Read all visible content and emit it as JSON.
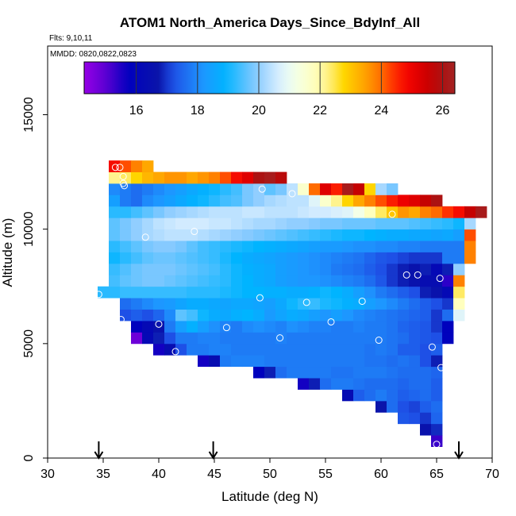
{
  "chart_data": {
    "type": "heatmap",
    "title": "ATOM1 North_America Days_Since_BdyInf_All",
    "flights_label": "Flts: 9,10,11",
    "mmdd_label": "MMDD: 0820,0822,0823",
    "xlabel": "Latitude (deg N)",
    "ylabel": "Altitude (m)",
    "xlim": [
      30,
      70
    ],
    "ylim": [
      0,
      18000
    ],
    "xticks": [
      30,
      35,
      40,
      45,
      50,
      55,
      60,
      65,
      70
    ],
    "xtick_labels": [
      "30",
      "35",
      "40",
      "45",
      "50",
      "55",
      "60",
      "65",
      "70"
    ],
    "yticks": [
      0,
      5000,
      10000,
      15000
    ],
    "ytick_labels": [
      "0",
      "5000",
      "10000",
      "15000"
    ],
    "colorbar": {
      "range": [
        14.3,
        26.4
      ],
      "ticks": [
        16,
        18,
        20,
        22,
        24,
        26
      ],
      "tick_labels": [
        "16",
        "18",
        "20",
        "22",
        "24",
        "26"
      ],
      "placement": "top-inside"
    },
    "cell_size_deg_lat": 1,
    "cell_size_alt_m": 500,
    "rows": [
      {
        "alt_min": 500,
        "lat_start": 64.5,
        "values": [
          15.3
        ]
      },
      {
        "alt_min": 1000,
        "lat_start": 63.5,
        "values": [
          16.6,
          16.9
        ]
      },
      {
        "alt_min": 1500,
        "lat_start": 61.5,
        "values": [
          17.3,
          17.2,
          17.0,
          17.5
        ]
      },
      {
        "alt_min": 2000,
        "lat_start": 59.5,
        "values": [
          16.7,
          17.6,
          17.2,
          17.1,
          17.4,
          17.6
        ]
      },
      {
        "alt_min": 2500,
        "lat_start": 56.5,
        "values": [
          16.3,
          17.4,
          17.6,
          17.8,
          17.6,
          17.4,
          17.5,
          17.6,
          17.4
        ]
      },
      {
        "alt_min": 3000,
        "lat_start": 52.5,
        "values": [
          15.6,
          16.8,
          17.6,
          17.8,
          17.8,
          17.7,
          17.6,
          17.6,
          17.6,
          17.5,
          17.6,
          17.6,
          17.4
        ]
      },
      {
        "alt_min": 3500,
        "lat_start": 48.5,
        "values": [
          15.8,
          16.8,
          17.6,
          17.8,
          17.8,
          17.8,
          17.8,
          17.7,
          17.7,
          17.8,
          17.8,
          17.8,
          17.7,
          17.6,
          17.6,
          17.6,
          17.5
        ]
      },
      {
        "alt_min": 4000,
        "lat_start": 43.5,
        "values": [
          15.6,
          16.4,
          17.8,
          17.9,
          17.9,
          17.9,
          17.8,
          17.8,
          17.8,
          17.8,
          17.8,
          17.8,
          17.8,
          17.8,
          17.8,
          17.7,
          17.7,
          17.6,
          17.7,
          17.6,
          17.2,
          16.8
        ]
      },
      {
        "alt_min": 4500,
        "lat_start": 39.5,
        "values": [
          15.6,
          16.4,
          17.2,
          17.8,
          17.8,
          17.9,
          17.9,
          17.8,
          17.8,
          17.8,
          17.8,
          17.8,
          17.8,
          17.8,
          17.8,
          17.8,
          17.8,
          17.8,
          17.8,
          17.7,
          17.8,
          17.7,
          17.4,
          17.4,
          17.2,
          17.4
        ]
      },
      {
        "alt_min": 5000,
        "lat_start": 37.5,
        "values": [
          14.8,
          16.2,
          16.8,
          17.2,
          17.8,
          17.8,
          17.9,
          17.9,
          17.8,
          17.8,
          17.8,
          17.8,
          17.8,
          17.9,
          17.8,
          17.8,
          17.8,
          17.8,
          17.8,
          17.8,
          17.8,
          17.8,
          17.8,
          17.7,
          17.6,
          17.4,
          17.3,
          17.2,
          15.8
        ]
      },
      {
        "alt_min": 5500,
        "lat_start": 37.5,
        "values": [
          15.8,
          16.2,
          16.6,
          17.8,
          18.4,
          18.8,
          18.4,
          18.1,
          17.9,
          17.8,
          18.0,
          18.1,
          18.0,
          17.9,
          18.1,
          18.0,
          17.9,
          17.9,
          17.8,
          17.8,
          17.9,
          17.8,
          17.8,
          17.7,
          17.5,
          17.4,
          17.3,
          17.0,
          15.8
        ]
      },
      {
        "alt_min": 6000,
        "lat_start": 36.5,
        "values": [
          17.2,
          17.4,
          17.2,
          17.5,
          18.0,
          19.6,
          19.4,
          19.0,
          18.7,
          18.6,
          18.8,
          18.9,
          18.7,
          18.3,
          18.5,
          18.7,
          18.6,
          18.4,
          18.2,
          18.4,
          18.2,
          18.0,
          17.9,
          17.8,
          17.7,
          17.6,
          17.5,
          17.4,
          17.0,
          17.6,
          20.8
        ]
      },
      {
        "alt_min": 6500,
        "lat_start": 36.5,
        "values": [
          17.6,
          17.8,
          18.0,
          18.2,
          18.3,
          18.5,
          18.7,
          18.7,
          18.6,
          18.5,
          18.6,
          18.6,
          18.5,
          18.4,
          18.6,
          19.0,
          19.2,
          19.3,
          19.1,
          19.0,
          18.8,
          18.7,
          18.4,
          18.2,
          18.0,
          17.8,
          17.6,
          17.4,
          17.2,
          17.0,
          21.8
        ]
      },
      {
        "alt_min": 7000,
        "lat_start": 34.5,
        "values": [
          19.2,
          19.2,
          19.3,
          19.3,
          19.3,
          19.3,
          19.3,
          19.3,
          19.2,
          19.2,
          19.2,
          19.1,
          19.0,
          18.9,
          18.9,
          18.8,
          18.8,
          18.7,
          18.7,
          18.8,
          19.0,
          18.9,
          18.7,
          18.4,
          18.1,
          17.8,
          17.6,
          17.4,
          17.2,
          16.8,
          16.6,
          16.2,
          22.4
        ]
      },
      {
        "alt_min": 7500,
        "lat_start": 35.5,
        "values": [
          19.4,
          19.6,
          19.7,
          19.8,
          19.8,
          19.7,
          19.6,
          19.5,
          19.4,
          19.3,
          19.2,
          19.0,
          18.9,
          18.7,
          18.6,
          18.4,
          18.3,
          18.2,
          18.2,
          18.1,
          18.0,
          17.9,
          17.8,
          17.6,
          17.3,
          17.0,
          16.8,
          16.6,
          16.4,
          16.4,
          15.4,
          23.8
        ]
      },
      {
        "alt_min": 8000,
        "lat_start": 35.5,
        "values": [
          19.3,
          19.5,
          19.7,
          19.8,
          19.8,
          19.8,
          19.7,
          19.6,
          19.5,
          19.4,
          19.2,
          19.0,
          18.8,
          18.7,
          18.6,
          18.4,
          18.3,
          18.2,
          18.1,
          18.0,
          17.8,
          17.7,
          17.6,
          17.4,
          17.2,
          17.0,
          16.8,
          16.6,
          16.8,
          16.2,
          16.8,
          20.0
        ]
      },
      {
        "alt_min": 8500,
        "lat_start": 35.5,
        "values": [
          19.0,
          19.2,
          19.4,
          19.6,
          19.7,
          19.7,
          19.6,
          19.5,
          19.4,
          19.3,
          19.1,
          18.9,
          18.7,
          18.6,
          18.5,
          18.4,
          18.3,
          18.2,
          18.1,
          18.0,
          17.9,
          17.8,
          17.7,
          17.5,
          17.3,
          17.2,
          17.1,
          17.0,
          17.0,
          17.0,
          17.8,
          17.8,
          23.8
        ]
      },
      {
        "alt_min": 9000,
        "lat_start": 35.5,
        "values": [
          19.2,
          19.4,
          19.6,
          19.8,
          19.9,
          19.9,
          19.8,
          19.6,
          19.4,
          19.3,
          19.2,
          19.1,
          19.0,
          18.9,
          18.8,
          18.7,
          18.6,
          18.5,
          18.4,
          18.3,
          18.3,
          18.2,
          18.1,
          18.1,
          18.0,
          18.0,
          17.9,
          17.9,
          17.8,
          17.8,
          17.8,
          17.8,
          23.8
        ]
      },
      {
        "alt_min": 9500,
        "lat_start": 35.5,
        "values": [
          19.6,
          19.8,
          20.0,
          20.2,
          20.3,
          20.4,
          20.4,
          20.4,
          20.3,
          20.2,
          20.1,
          20.0,
          19.9,
          19.8,
          19.7,
          19.6,
          19.5,
          19.4,
          19.3,
          19.2,
          19.1,
          19.0,
          19.0,
          18.9,
          18.8,
          18.7,
          18.7,
          18.6,
          18.6,
          18.5,
          18.6,
          18.4,
          24.2
        ]
      },
      {
        "alt_min": 10000,
        "lat_start": 35.5,
        "values": [
          19.6,
          19.8,
          20.0,
          20.2,
          20.4,
          20.5,
          20.6,
          20.6,
          20.6,
          20.5,
          20.5,
          20.4,
          20.3,
          20.2,
          20.2,
          20.1,
          20.0,
          20.0,
          19.9,
          19.8,
          19.8,
          19.7,
          19.7,
          19.7,
          19.6,
          19.6,
          19.6,
          19.5,
          19.4,
          19.3,
          19.2,
          19.0,
          20.2
        ]
      },
      {
        "alt_min": 10500,
        "lat_start": 35.5,
        "values": [
          19.2,
          19.2,
          19.4,
          19.6,
          19.8,
          20.0,
          20.1,
          20.2,
          20.3,
          20.4,
          20.4,
          20.4,
          20.5,
          20.5,
          20.4,
          20.4,
          20.4,
          20.5,
          20.6,
          20.6,
          20.7,
          20.8,
          21.2,
          21.8,
          22.4,
          23.0,
          23.6,
          23.4,
          23.8,
          24.0,
          24.4,
          24.8,
          25.6,
          26.2
        ]
      },
      {
        "alt_min": 11000,
        "lat_start": 35.5,
        "values": [
          18.4,
          17.8,
          17.6,
          18.0,
          18.2,
          18.4,
          18.6,
          18.8,
          19.0,
          19.2,
          19.4,
          19.5,
          19.8,
          20.0,
          20.2,
          20.3,
          20.4,
          20.4,
          20.8,
          21.6,
          22.2,
          22.8,
          23.4,
          23.8,
          24.2,
          24.6,
          25.0,
          25.2,
          25.6,
          26.0
        ]
      },
      {
        "alt_min": 11500,
        "lat_start": 35.5,
        "values": [
          18.0,
          17.8,
          17.6,
          17.8,
          18.0,
          18.2,
          18.4,
          18.6,
          18.8,
          19.0,
          19.2,
          19.4,
          19.8,
          20.0,
          19.6,
          19.8,
          20.4,
          21.6,
          24.0,
          25.2,
          24.6,
          26.2,
          25.6,
          22.8,
          20.2,
          19.8
        ]
      },
      {
        "alt_min": 12000,
        "lat_start": 35.5,
        "values": [
          22.2,
          22.4,
          22.8,
          23.2,
          23.4,
          23.6,
          23.6,
          23.4,
          23.6,
          23.8,
          24.2,
          24.8,
          25.2,
          26.0,
          26.2,
          25.8
        ]
      },
      {
        "alt_min": 12500,
        "lat_start": 35.5,
        "values": [
          24.8,
          24.2,
          23.8,
          23.4
        ]
      }
    ],
    "flight_points": [
      {
        "lat": 36.1,
        "alt": 12700
      },
      {
        "lat": 36.5,
        "alt": 12700
      },
      {
        "lat": 36.8,
        "alt": 12300
      },
      {
        "lat": 36.8,
        "alt": 12000
      },
      {
        "lat": 36.9,
        "alt": 11900
      },
      {
        "lat": 49.3,
        "alt": 11750
      },
      {
        "lat": 52.0,
        "alt": 11550
      },
      {
        "lat": 61.0,
        "alt": 10650
      },
      {
        "lat": 70.0,
        "alt": 10900
      },
      {
        "lat": 43.2,
        "alt": 9900
      },
      {
        "lat": 38.8,
        "alt": 9650
      },
      {
        "lat": 62.3,
        "alt": 8000
      },
      {
        "lat": 63.3,
        "alt": 8000
      },
      {
        "lat": 65.3,
        "alt": 7850
      },
      {
        "lat": 34.6,
        "alt": 7150
      },
      {
        "lat": 49.1,
        "alt": 7000
      },
      {
        "lat": 53.3,
        "alt": 6800
      },
      {
        "lat": 58.3,
        "alt": 6850
      },
      {
        "lat": 36.6,
        "alt": 6050
      },
      {
        "lat": 40.0,
        "alt": 5850
      },
      {
        "lat": 46.1,
        "alt": 5700
      },
      {
        "lat": 55.5,
        "alt": 5950
      },
      {
        "lat": 50.9,
        "alt": 5250
      },
      {
        "lat": 59.8,
        "alt": 5150
      },
      {
        "lat": 64.6,
        "alt": 4850
      },
      {
        "lat": 41.5,
        "alt": 4650
      },
      {
        "lat": 37.9,
        "alt": 4550
      },
      {
        "lat": 65.4,
        "alt": 3950
      },
      {
        "lat": 59.1,
        "alt": 1850
      },
      {
        "lat": 65.0,
        "alt": 600
      }
    ],
    "markers": [
      {
        "lat": 34.6
      },
      {
        "lat": 44.9
      },
      {
        "lat": 67.0
      }
    ],
    "grid": false,
    "legend": "none"
  }
}
